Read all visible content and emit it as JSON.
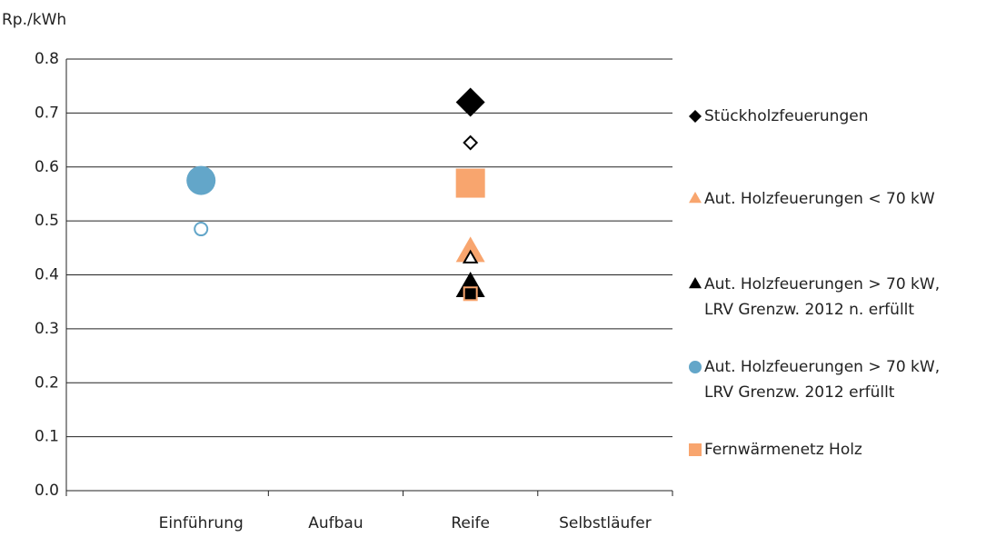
{
  "chart_data": {
    "type": "scatter",
    "y_label": "Rp./kWh",
    "categories": [
      "Einführung",
      "Aufbau",
      "Reife",
      "Selbstläufer"
    ],
    "ylim": [
      0,
      0.8
    ],
    "yticks": [
      {
        "value": 0,
        "label": "0.0"
      },
      0.1,
      0.2,
      0.3,
      0.4,
      0.5,
      0.6,
      0.7,
      0.8
    ],
    "grid": true,
    "legend": "right",
    "series": [
      {
        "name": "Stückholzfeuerungen",
        "marker": "diamond",
        "color": "#000000",
        "values": [
          null,
          null,
          0.72,
          null
        ],
        "secondary_values": [
          null,
          null,
          0.645,
          null
        ],
        "secondary_fill": "#ffffff",
        "secondary_stroke": "#000000"
      },
      {
        "name": "Aut. Holzfeuerungen < 70 kW",
        "marker": "triangle",
        "color": "#f8a56e",
        "values": [
          null,
          null,
          0.44,
          null
        ],
        "secondary_values": [
          null,
          null,
          0.43,
          null
        ],
        "secondary_fill": "#ffffff",
        "secondary_stroke": "#000000"
      },
      {
        "name": "Aut. Holzfeuerungen > 70 kW, LRV Grenzw. 2012 n. erfüllt",
        "marker": "triangle",
        "color": "#000000",
        "values": [
          null,
          null,
          0.375,
          null
        ],
        "secondary_values": [
          null,
          null,
          null,
          null
        ],
        "secondary_fill": "#ffffff",
        "secondary_stroke": "#000000"
      },
      {
        "name": "Aut. Holzfeuerungen > 70 kW, LRV Grenzw. 2012 erfüllt",
        "marker": "circle",
        "color": "#63a6c9",
        "values": [
          0.575,
          null,
          null,
          null
        ],
        "secondary_values": [
          0.485,
          null,
          null,
          null
        ],
        "secondary_fill": "#ffffff",
        "secondary_stroke": "#63a6c9"
      },
      {
        "name": "Fernwärmenetz Holz",
        "marker": "square",
        "color": "#f8a56e",
        "values": [
          null,
          null,
          0.57,
          null
        ],
        "secondary_values": [
          null,
          null,
          0.365,
          null
        ],
        "secondary_fill": "#000000",
        "secondary_stroke": "#f8a56e"
      }
    ]
  }
}
